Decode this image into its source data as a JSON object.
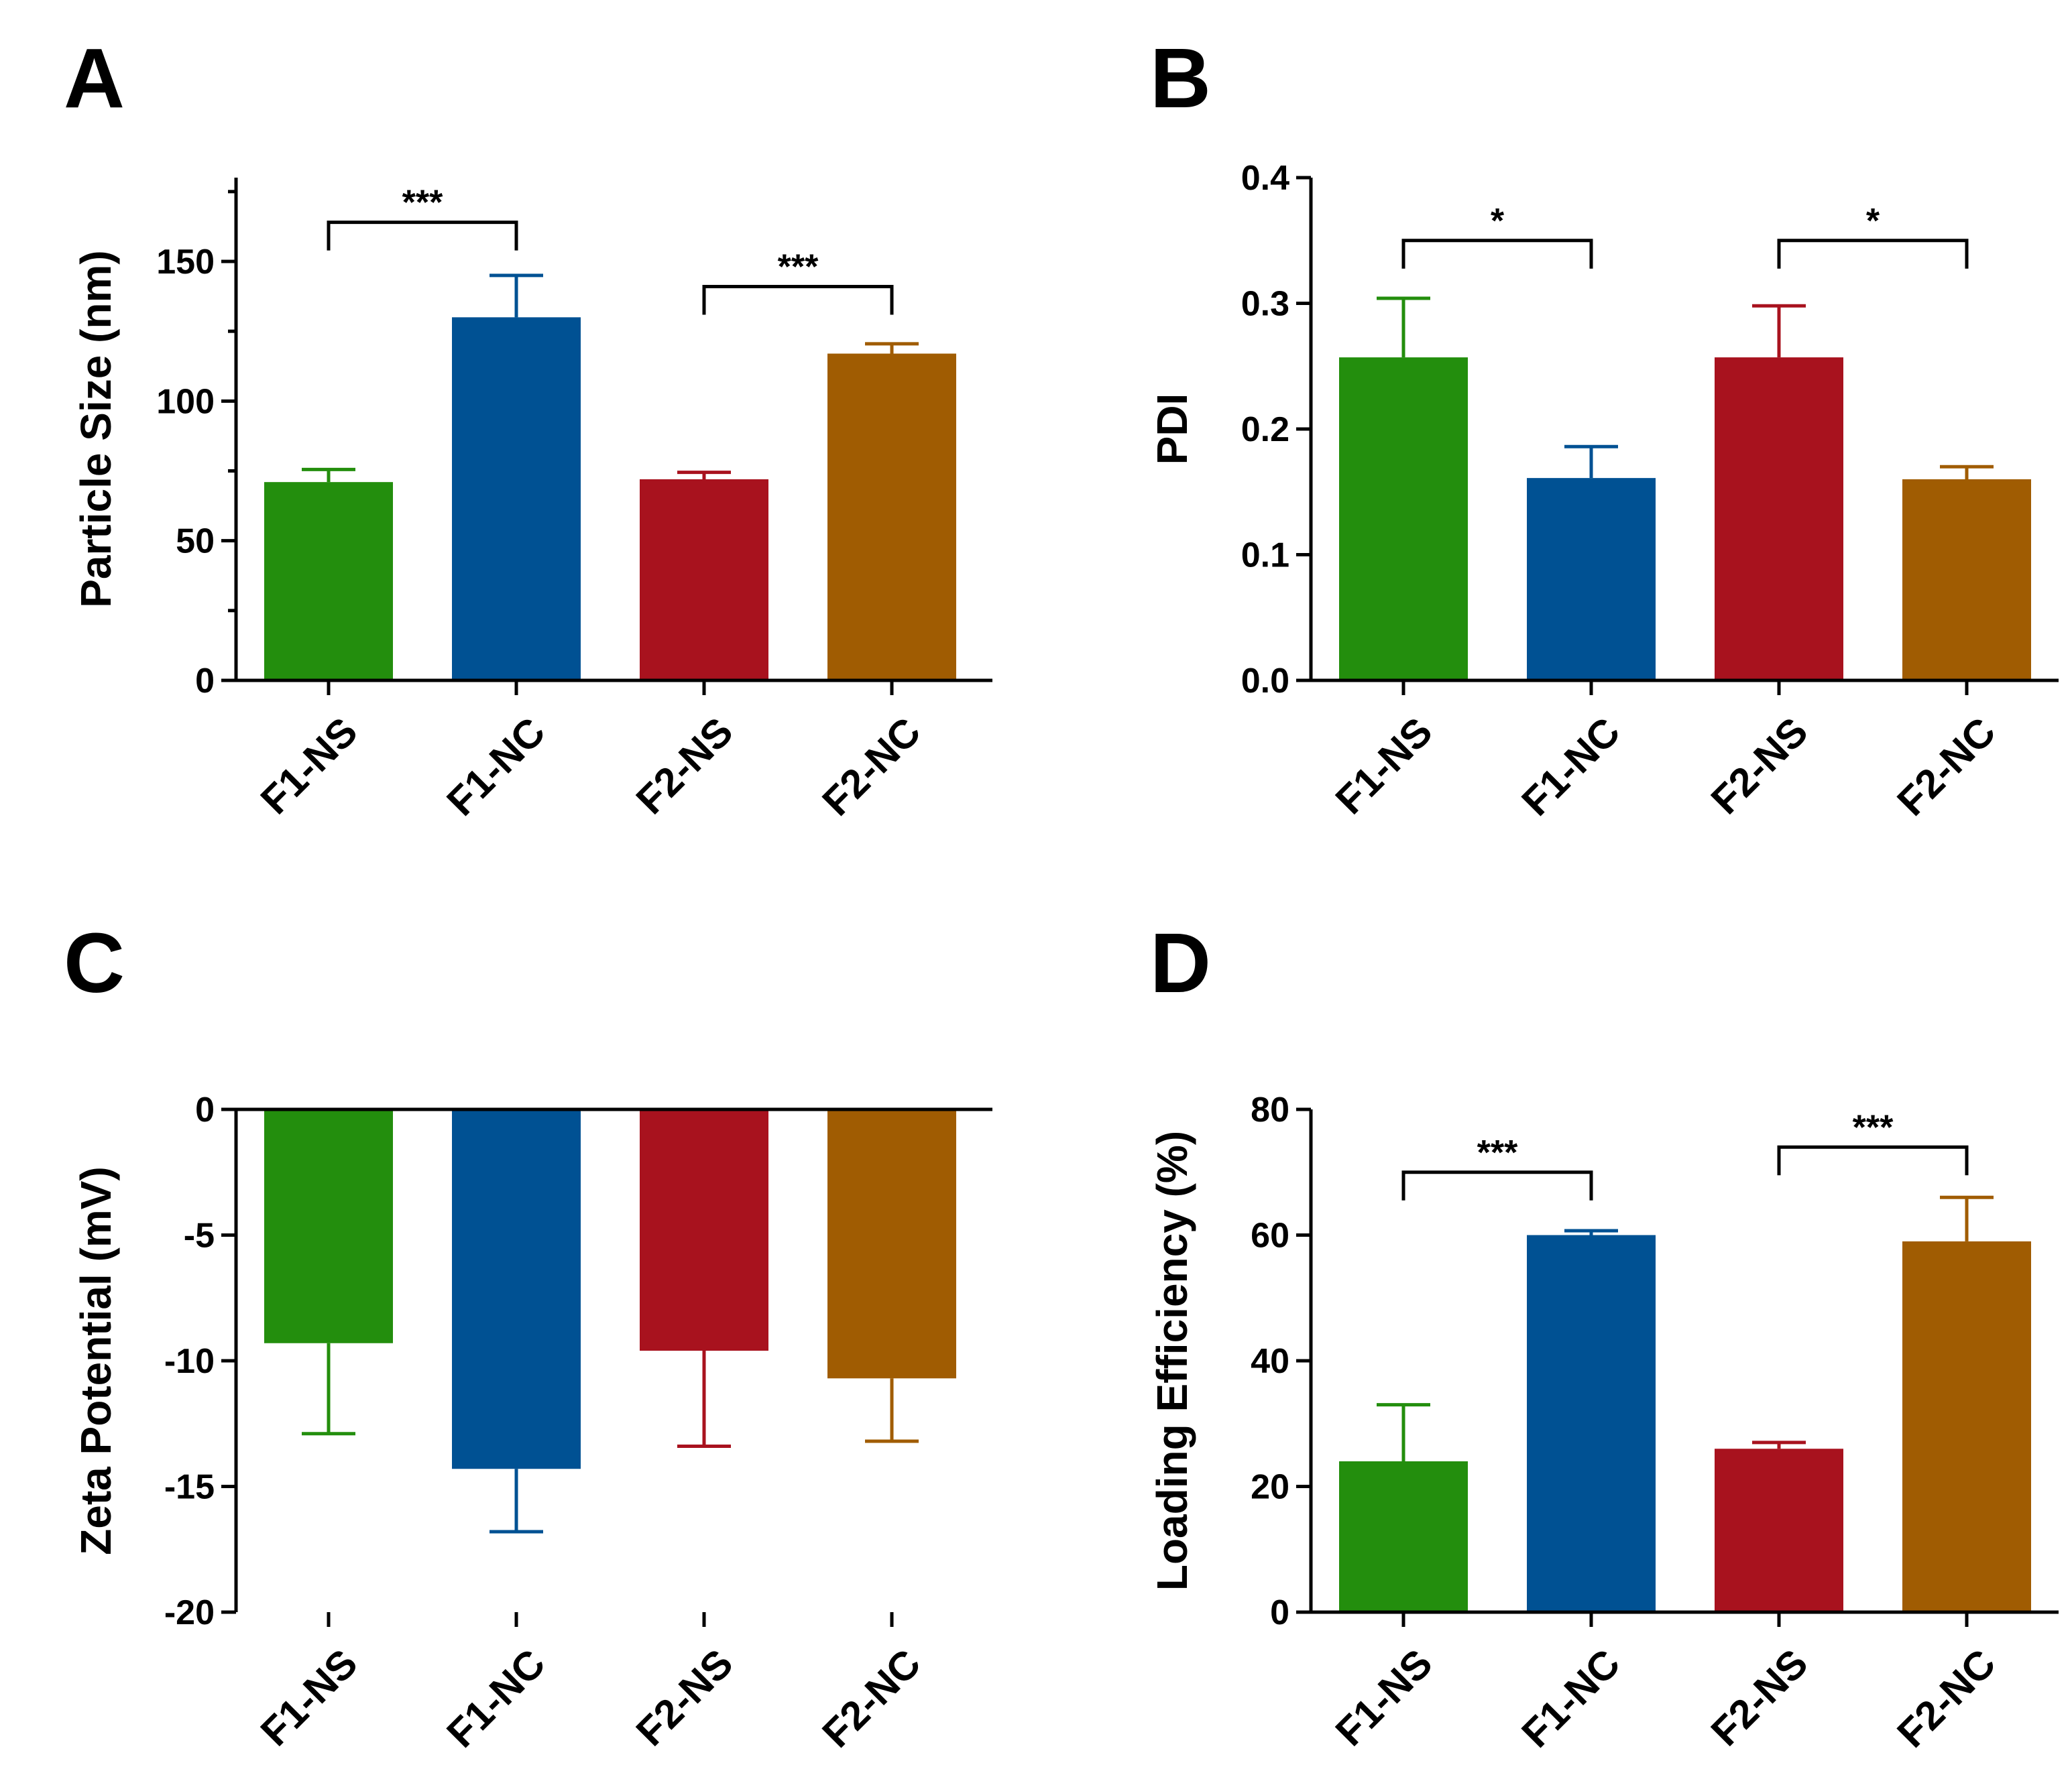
{
  "colors": {
    "F1-NS": "#238e0d",
    "F1-NC": "#005193",
    "F2-NS": "#a8121e",
    "F2-NC": "#a05c02",
    "axis": "#000000"
  },
  "chart_data": [
    {
      "panel": "A",
      "type": "bar",
      "ylabel": "Particle Size (nm)",
      "categories": [
        "F1-NS",
        "F1-NC",
        "F2-NS",
        "F2-NC"
      ],
      "values": [
        71,
        130,
        72,
        117
      ],
      "errors": [
        4.5,
        15,
        2.5,
        3.5
      ],
      "ylim": [
        0,
        180
      ],
      "yticks": [
        0,
        50,
        100,
        150
      ],
      "significance": [
        {
          "from": 0,
          "to": 1,
          "label": "***",
          "level": 164
        },
        {
          "from": 2,
          "to": 3,
          "label": "***",
          "level": 141
        }
      ]
    },
    {
      "panel": "B",
      "type": "bar",
      "ylabel": "PDI",
      "categories": [
        "F1-NS",
        "F1-NC",
        "F2-NS",
        "F2-NC"
      ],
      "values": [
        0.257,
        0.161,
        0.257,
        0.16
      ],
      "errors": [
        0.047,
        0.025,
        0.041,
        0.01
      ],
      "ylim": [
        0,
        0.4
      ],
      "yticks": [
        0.0,
        0.1,
        0.2,
        0.3,
        0.4
      ],
      "ytick_labels": [
        "0.0",
        "0.1",
        "0.2",
        "0.3",
        "0.4"
      ],
      "significance": [
        {
          "from": 0,
          "to": 1,
          "label": "*",
          "level": 0.35
        },
        {
          "from": 2,
          "to": 3,
          "label": "*",
          "level": 0.35
        }
      ]
    },
    {
      "panel": "C",
      "type": "bar",
      "ylabel": "Zeta Potential (mV)",
      "categories": [
        "F1-NS",
        "F1-NC",
        "F2-NS",
        "F2-NC"
      ],
      "values": [
        -9.3,
        -14.3,
        -9.6,
        -10.7
      ],
      "errors": [
        3.6,
        2.5,
        3.8,
        2.5
      ],
      "ylim": [
        -20,
        0
      ],
      "yticks": [
        0,
        -5,
        -10,
        -15,
        -20
      ],
      "significance": []
    },
    {
      "panel": "D",
      "type": "bar",
      "ylabel": "Loading Efficiency (%)",
      "categories": [
        "F1-NS",
        "F1-NC",
        "F2-NS",
        "F2-NC"
      ],
      "values": [
        24,
        60,
        26,
        59
      ],
      "errors": [
        9,
        0.7,
        1,
        7
      ],
      "ylim": [
        0,
        80
      ],
      "yticks": [
        0,
        20,
        40,
        60,
        80
      ],
      "significance": [
        {
          "from": 0,
          "to": 1,
          "label": "***",
          "level": 70
        },
        {
          "from": 2,
          "to": 3,
          "label": "***",
          "level": 74
        }
      ]
    }
  ]
}
